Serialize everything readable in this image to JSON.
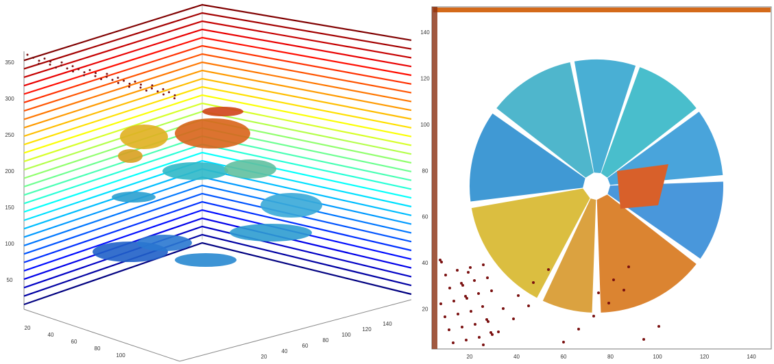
{
  "left_panel": {
    "z_ticks": [
      "350",
      "300",
      "250",
      "200",
      "150",
      "100",
      "50"
    ],
    "x_ticks": [
      "20",
      "40",
      "60",
      "80",
      "100"
    ],
    "y_ticks": [
      "20",
      "40",
      "60",
      "80",
      "100",
      "120",
      "140"
    ]
  },
  "right_panel": {
    "y_ticks": [
      "140",
      "120",
      "100",
      "80",
      "60",
      "40",
      "20"
    ],
    "x_ticks": [
      "20",
      "40",
      "60",
      "80",
      "100",
      "120",
      "140"
    ]
  }
}
